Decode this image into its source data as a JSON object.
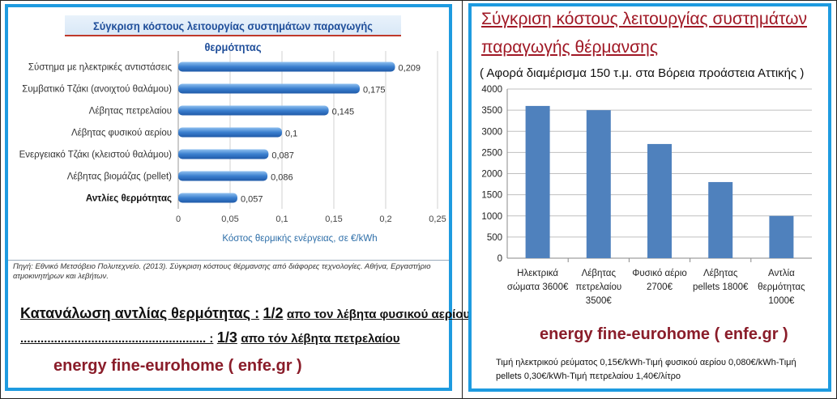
{
  "left": {
    "title": "Σύγκριση κόστους λειτουργίας συστημάτων παραγωγής θερμότητας",
    "source": "Πηγή: Εθνικό Μετσόβειο Πολυτεχνείο. (2013). Σύγκριση κόστους θέρμανσης από διάφορες τεχνολογίες. Αθήνα, Εργαστήριο ατμοκινητήρων και λεβήτων.",
    "consumption_line1_label": "Κατανάλωση αντλίας θερμότητας :",
    "consumption_line1_fraction": "1/2",
    "consumption_line1_text": "απο τον λέβητα φυσικού αερίου",
    "consumption_line2_label": "....................................................... :",
    "consumption_line2_fraction": "1/3",
    "consumption_line2_text": "απο τόν λέβητα πετρελαίου",
    "brand": "energy fine-eurohome ( enfe.gr )"
  },
  "right": {
    "title_line1": "Σύγκριση κόστους λειτουργίας συστημάτων",
    "title_line2": "παραγωγής θέρμανσης",
    "subtitle": "( Αφορά διαμέρισμα 150 τ.μ. στα Βόρεια προάστεια Αττικής )",
    "brand": "energy fine-eurohome ( enfe.gr )",
    "footnote": "Τιμή ηλεκτρικού ρεύματος 0,15€/kWh-Τιμή φυσικού αερίου 0,080€/kWh-Τιμή pellets 0,30€/kWh-Τιμή πετρελαίου 1,40€/λίτρο"
  },
  "chart_data": [
    {
      "type": "bar",
      "orientation": "horizontal",
      "title": "Σύγκριση κόστους λειτουργίας συστημάτων παραγωγής θερμότητας",
      "xlabel": "Κόστος θερμικής ενέργειας, σε €/kWh",
      "categories": [
        "Σύστημα με ηλεκτρικές αντιστάσεις",
        "Συμβατικό Τζάκι (ανοιχτού θαλάμου)",
        "Λέβητας πετρελαίου",
        "Λέβητας φυσικού αερίου",
        "Ενεργειακό Τζάκι (κλειστού θαλάμου)",
        "Λέβητας βιομάζας (pellet)",
        "Αντλίες θερμότητας"
      ],
      "values": [
        0.209,
        0.175,
        0.145,
        0.1,
        0.087,
        0.086,
        0.057
      ],
      "value_labels": [
        "0,209",
        "0,175",
        "0,145",
        "0,1",
        "0,087",
        "0,086",
        "0,057"
      ],
      "highlight_category": "Αντλίες θερμότητας",
      "xlim": [
        0,
        0.25
      ],
      "xticks": [
        "0",
        "0,05",
        "0,1",
        "0,15",
        "0,2",
        "0,25"
      ],
      "grid": true,
      "bar_color": "#3b7fcf"
    },
    {
      "type": "bar",
      "orientation": "vertical",
      "title": "Σύγκριση κόστους λειτουργίας συστημάτων παραγωγής θέρμανσης",
      "categories": [
        [
          "Ηλεκτρικά",
          "σώματα 3600€"
        ],
        [
          "Λέβητας",
          "πετρελαίου",
          "3500€"
        ],
        [
          "Φυσικό αέριο",
          "2700€"
        ],
        [
          "Λέβητας",
          "pellets  1800€"
        ],
        [
          "Αντλία",
          "θερμότητας",
          "1000€"
        ]
      ],
      "values": [
        3600,
        3500,
        2700,
        1800,
        1000
      ],
      "ylim": [
        0,
        4000
      ],
      "yticks": [
        "0",
        "500",
        "1000",
        "1500",
        "2000",
        "2500",
        "3000",
        "3500",
        "4000"
      ],
      "grid": true,
      "bar_color": "#4f81bd"
    }
  ]
}
